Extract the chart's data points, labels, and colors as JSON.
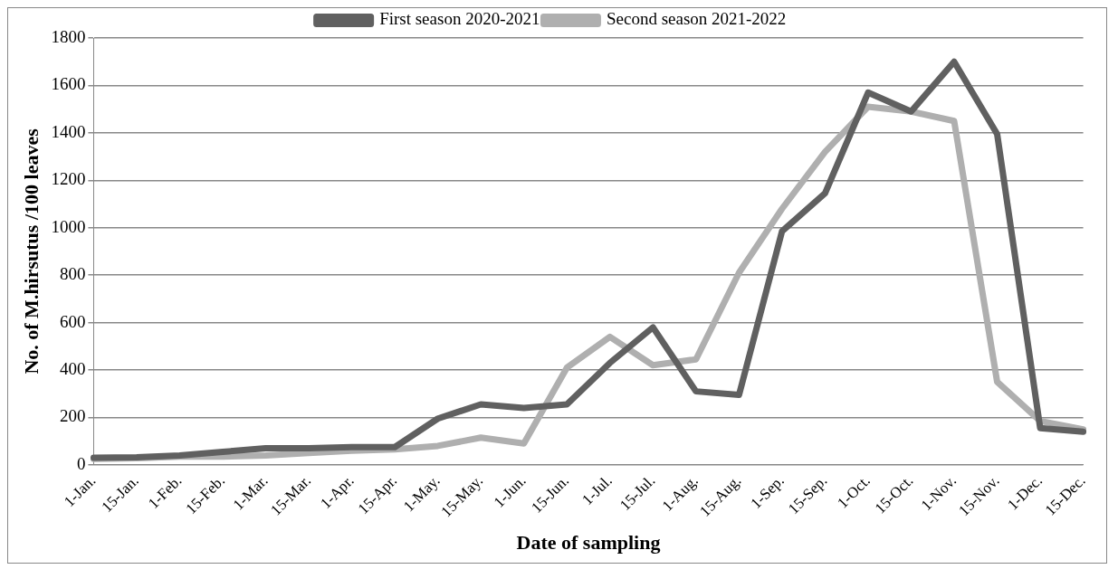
{
  "chart_data": {
    "type": "line",
    "xlabel": "Date of sampling",
    "ylabel": "No. of M.hirsutus /100 leaves",
    "categories": [
      "1-Jan.",
      "15-Jan.",
      "1-Feb.",
      "15-Feb.",
      "1-Mar.",
      "15-Mar.",
      "1-Apr.",
      "15-Apr.",
      "1-May.",
      "15-May.",
      "1-Jun.",
      "15-Jun.",
      "1-Jul.",
      "15-Jul.",
      "1-Aug.",
      "15-Aug.",
      "1-Sep.",
      "15-Sep.",
      "1-Oct.",
      "15-Oct.",
      "1-Nov.",
      "15-Nov.",
      "1-Dec.",
      "15-Dec."
    ],
    "series": [
      {
        "name": "First season 2020-2021",
        "color": "#606060",
        "values": [
          30,
          32,
          40,
          55,
          70,
          70,
          75,
          75,
          195,
          255,
          240,
          255,
          430,
          580,
          310,
          295,
          985,
          1145,
          1570,
          1490,
          1700,
          1395,
          155,
          140
        ]
      },
      {
        "name": "Second season 2021-2022",
        "color": "#afafaf",
        "values": [
          25,
          28,
          35,
          35,
          40,
          50,
          60,
          65,
          80,
          115,
          90,
          410,
          540,
          420,
          445,
          810,
          1080,
          1320,
          1510,
          1490,
          1450,
          350,
          185,
          150
        ]
      }
    ],
    "ylim": [
      0,
      1800
    ],
    "yticks": [
      0,
      200,
      400,
      600,
      800,
      1000,
      1200,
      1400,
      1600,
      1800
    ],
    "grid": "y",
    "legend": "top",
    "marker": "none",
    "line_style": "solid"
  }
}
